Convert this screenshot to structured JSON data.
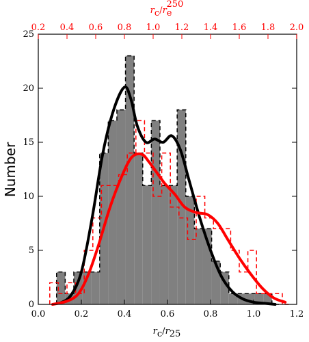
{
  "chart_data": {
    "type": "histogram",
    "ylabel": "Number",
    "xlabel_bottom": "rc/r25",
    "xlabel_top": "rc/re250",
    "axes_bottom": {
      "xlim": [
        0.0,
        1.2
      ],
      "ticks": [
        0.0,
        0.2,
        0.4,
        0.6,
        0.8,
        1.0,
        1.2
      ]
    },
    "axes_top": {
      "xlim": [
        0.2,
        2.0
      ],
      "ticks": [
        0.2,
        0.4,
        0.6,
        0.8,
        1.0,
        1.2,
        1.4,
        1.6,
        1.8,
        2.0
      ]
    },
    "ylim": [
      0,
      25
    ],
    "yticks": [
      0,
      5,
      10,
      15,
      20,
      25
    ],
    "grid": false,
    "colors": {
      "fill": "#808080",
      "black_series": "#000000",
      "red_series": "#ff0000"
    },
    "series": [
      {
        "axis": "bottom",
        "style": "filled-step",
        "color": "#808080",
        "edge": "#000000",
        "bins": [
          [
            0.085,
            0.125,
            3
          ],
          [
            0.125,
            0.165,
            1
          ],
          [
            0.165,
            0.205,
            3
          ],
          [
            0.205,
            0.245,
            3
          ],
          [
            0.245,
            0.285,
            3
          ],
          [
            0.285,
            0.325,
            14
          ],
          [
            0.325,
            0.365,
            17
          ],
          [
            0.365,
            0.405,
            18
          ],
          [
            0.405,
            0.445,
            23
          ],
          [
            0.445,
            0.485,
            14
          ],
          [
            0.485,
            0.525,
            11
          ],
          [
            0.525,
            0.565,
            17
          ],
          [
            0.565,
            0.605,
            11
          ],
          [
            0.605,
            0.645,
            11
          ],
          [
            0.645,
            0.685,
            18
          ],
          [
            0.685,
            0.725,
            10
          ],
          [
            0.725,
            0.765,
            7
          ],
          [
            0.765,
            0.805,
            7
          ],
          [
            0.805,
            0.845,
            4
          ],
          [
            0.845,
            0.885,
            3
          ],
          [
            0.885,
            0.925,
            1
          ],
          [
            0.925,
            0.965,
            1
          ],
          [
            0.965,
            1.005,
            1
          ],
          [
            1.005,
            1.045,
            1
          ],
          [
            1.045,
            1.085,
            1
          ],
          [
            1.085,
            1.125,
            0
          ]
        ]
      },
      {
        "axis": "top",
        "style": "dashed-step",
        "color": "#ff0000",
        "bins": [
          [
            0.28,
            0.34,
            2
          ],
          [
            0.34,
            0.4,
            1
          ],
          [
            0.4,
            0.46,
            2
          ],
          [
            0.46,
            0.52,
            1
          ],
          [
            0.52,
            0.58,
            5
          ],
          [
            0.58,
            0.64,
            8
          ],
          [
            0.64,
            0.7,
            11
          ],
          [
            0.7,
            0.76,
            11
          ],
          [
            0.76,
            0.82,
            12
          ],
          [
            0.82,
            0.88,
            14
          ],
          [
            0.88,
            0.94,
            17
          ],
          [
            0.94,
            1.0,
            14
          ],
          [
            1.0,
            1.06,
            10
          ],
          [
            1.06,
            1.12,
            14
          ],
          [
            1.12,
            1.18,
            9
          ],
          [
            1.18,
            1.24,
            8
          ],
          [
            1.24,
            1.3,
            6
          ],
          [
            1.3,
            1.36,
            10
          ],
          [
            1.36,
            1.42,
            8
          ],
          [
            1.42,
            1.48,
            7
          ],
          [
            1.48,
            1.54,
            7
          ],
          [
            1.54,
            1.6,
            5
          ],
          [
            1.6,
            1.66,
            3
          ],
          [
            1.66,
            1.72,
            5
          ],
          [
            1.72,
            1.78,
            1
          ],
          [
            1.78,
            1.84,
            1
          ],
          [
            1.84,
            1.9,
            1
          ],
          [
            1.9,
            1.96,
            0
          ]
        ]
      },
      {
        "axis": "bottom",
        "style": "smooth-line",
        "color": "#000000",
        "x": [
          0.1,
          0.15,
          0.2,
          0.25,
          0.3,
          0.35,
          0.4,
          0.43,
          0.46,
          0.5,
          0.54,
          0.58,
          0.62,
          0.66,
          0.7,
          0.75,
          0.8,
          0.85,
          0.9,
          0.95,
          1.0,
          1.05,
          1.1
        ],
        "y": [
          0.1,
          0.8,
          3.0,
          8.0,
          14.0,
          18.0,
          20.1,
          19.0,
          16.5,
          15.0,
          15.3,
          15.0,
          15.6,
          14.3,
          11.5,
          8.0,
          5.0,
          2.6,
          1.2,
          0.5,
          0.2,
          0.1,
          0.0
        ]
      },
      {
        "axis": "top",
        "style": "smooth-line",
        "color": "#ff0000",
        "x": [
          0.3,
          0.4,
          0.48,
          0.55,
          0.62,
          0.7,
          0.78,
          0.85,
          0.92,
          0.97,
          1.02,
          1.08,
          1.15,
          1.22,
          1.3,
          1.38,
          1.45,
          1.52,
          1.6,
          1.68,
          1.76,
          1.84,
          1.92
        ],
        "y": [
          0.0,
          0.3,
          1.0,
          2.8,
          5.5,
          9.0,
          11.8,
          13.6,
          13.9,
          13.2,
          12.3,
          11.2,
          10.2,
          9.0,
          8.5,
          8.3,
          7.5,
          6.0,
          4.3,
          2.8,
          1.5,
          0.6,
          0.2
        ]
      }
    ]
  }
}
